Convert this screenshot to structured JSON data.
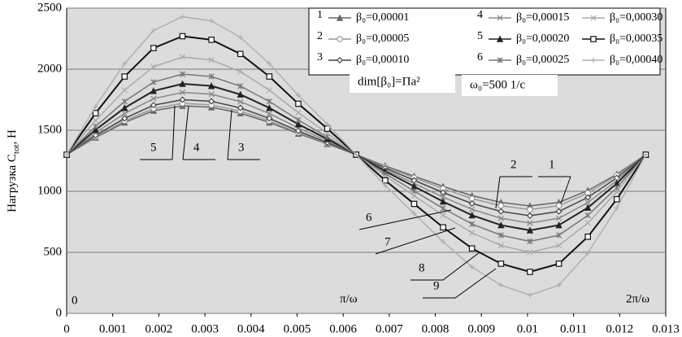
{
  "chart_data": {
    "type": "line",
    "ylabel": "Нагрузка C",
    "ylabel_sub": "tot",
    "ylabel_unit": ", Н",
    "x": [
      0,
      0.000628,
      0.001257,
      0.001885,
      0.002513,
      0.003142,
      0.00377,
      0.004398,
      0.005027,
      0.005655,
      0.006283,
      0.006912,
      0.00754,
      0.008168,
      0.008796,
      0.009425,
      0.010053,
      0.010681,
      0.01131,
      0.011938,
      0.012566
    ],
    "series": [
      {
        "label": "1",
        "name": "β₀=0,00001",
        "color": "#666666",
        "marker": "triangle",
        "values": [
          1300,
          1440,
          1564,
          1660,
          1700,
          1688,
          1640,
          1564,
          1472,
          1388,
          1300,
          1208,
          1124,
          1040,
          964,
          909,
          880,
          909,
          1006,
          1140,
          1300
        ]
      },
      {
        "label": "2",
        "name": "β₀=0,00005",
        "color": "#999999",
        "marker": "circle",
        "values": [
          1300,
          1447,
          1577,
          1678,
          1720,
          1707,
          1657,
          1577,
          1481,
          1392,
          1300,
          1201,
          1111,
          1021,
          940,
          882,
          850,
          882,
          985,
          1129,
          1300
        ]
      },
      {
        "label": "3",
        "name": "β₀=0,00010",
        "color": "#444444",
        "marker": "diamond",
        "values": [
          1300,
          1458,
          1597,
          1705,
          1750,
          1737,
          1683,
          1597,
          1494,
          1399,
          1300,
          1190,
          1090,
          990,
          900,
          835,
          800,
          835,
          950,
          1110,
          1300
        ]
      },
      {
        "label": "4",
        "name": "β₀=0,00015",
        "color": "#888888",
        "marker": "x",
        "values": [
          1300,
          1479,
          1637,
          1759,
          1810,
          1795,
          1734,
          1637,
          1519,
          1412,
          1300,
          1177,
          1065,
          953,
          852,
          779,
          740,
          779,
          908,
          1087,
          1300
        ]
      },
      {
        "label": "5",
        "name": "β₀=0,00020",
        "color": "#222222",
        "marker": "triangle",
        "values": [
          1300,
          1503,
          1683,
          1822,
          1880,
          1863,
          1793,
          1683,
          1549,
          1428,
          1300,
          1164,
          1040,
          916,
          804,
          723,
          680,
          723,
          866,
          1064,
          1300
        ]
      },
      {
        "label": "6",
        "name": "β₀=0,00025",
        "color": "#777777",
        "marker": "star",
        "values": [
          1300,
          1531,
          1736,
          1894,
          1960,
          1940,
          1861,
          1736,
          1584,
          1445,
          1300,
          1144,
          1002,
          860,
          732,
          640,
          590,
          640,
          803,
          1030,
          1300
        ]
      },
      {
        "name": "β₀=0,00030",
        "color": "#aaaaaa",
        "marker": "x",
        "values": [
          1300,
          1580,
          1828,
          2020,
          2100,
          2076,
          1980,
          1828,
          1644,
          1476,
          1300,
          1124,
          964,
          804,
          660,
          556,
          500,
          556,
          740,
          996,
          1300
        ]
      },
      {
        "name": "β₀=0,00035",
        "color": "#111111",
        "marker": "square",
        "values": [
          1300,
          1640,
          1940,
          2173,
          2270,
          2241,
          2125,
          1940,
          1717,
          1513,
          1300,
          1089,
          897,
          705,
          532,
          407,
          340,
          407,
          628,
          935,
          1300
        ]
      },
      {
        "name": "β₀=0,00040",
        "color": "#b0b0b0",
        "marker": "plus",
        "values": [
          1300,
          1696,
          2046,
          2317,
          2430,
          2396,
          2261,
          2046,
          1786,
          1549,
          1300,
          1047,
          817,
          587,
          380,
          231,
          150,
          231,
          495,
          863,
          1300
        ]
      }
    ],
    "xlim": [
      0,
      0.013
    ],
    "xticks": [
      0,
      0.001,
      0.002,
      0.003,
      0.004,
      0.005,
      0.006,
      0.007,
      0.008,
      0.009,
      0.01,
      0.011,
      0.012,
      0.013
    ],
    "ylim": [
      0,
      2500
    ],
    "yticks": [
      0,
      500,
      1000,
      1500,
      2000,
      2500
    ],
    "grid": true,
    "annotations": [
      "dim[β₀]=Па²",
      "ω₀=500 1/с",
      "0",
      "π/ω",
      "2π/ω"
    ],
    "curve_labels": [
      "5",
      "4",
      "3",
      "2",
      "1",
      "6",
      "7",
      "8",
      "9"
    ]
  }
}
